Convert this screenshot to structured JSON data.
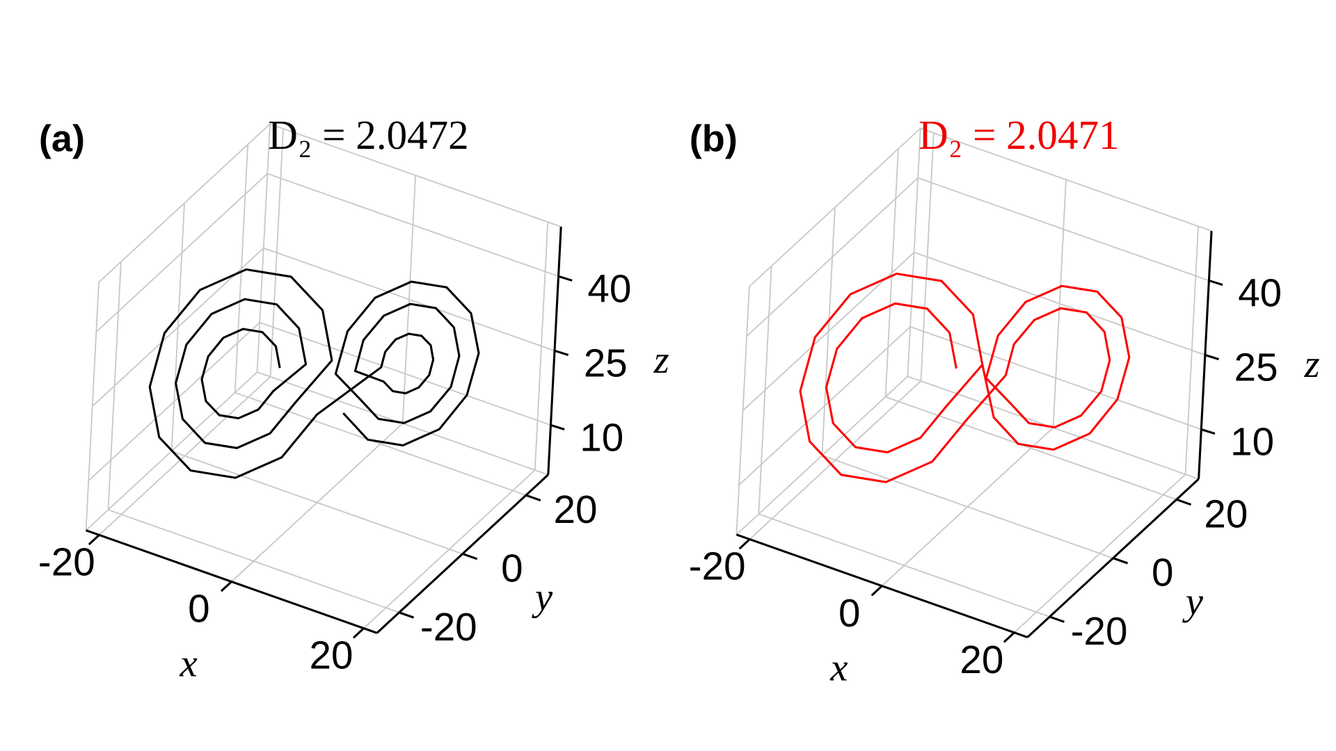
{
  "chart_data": [
    {
      "type": "line3d",
      "panel_label": "(a)",
      "title": "D₂ = 2.0472",
      "title_color": "#000000",
      "xlabel": "x",
      "ylabel": "y",
      "zlabel": "z",
      "xlim": [
        -22,
        22
      ],
      "ylim": [
        -27,
        27
      ],
      "zlim": [
        0,
        50
      ],
      "xticks": [
        -20,
        0,
        20
      ],
      "yticks": [
        -20,
        0,
        20
      ],
      "zticks": [
        10,
        25,
        40
      ],
      "grid": true,
      "series": [
        {
          "color": "#000000",
          "x": [
            -4.9,
            -5.4,
            -6.7,
            -8.5,
            -10.3,
            -11.6,
            -12.1,
            -11.6,
            -10.3,
            -8.5,
            -6.7,
            -5.4,
            -2.5,
            -3.3,
            -5.5,
            -8.5,
            -11.5,
            -13.7,
            -14.5,
            -13.7,
            -11.5,
            -8.5,
            -5.5,
            -3.3,
            -0.1,
            -1.2,
            -4.3,
            -8.5,
            -12.7,
            -15.8,
            -16.9,
            -15.8,
            -12.7,
            -8.5,
            -4.3,
            -1.2,
            6.1,
            6.4,
            7.3,
            8.5,
            9.7,
            10.6,
            10.9,
            10.6,
            9.7,
            8.5,
            7.3,
            6.4,
            3.7,
            4.3,
            6.1,
            8.5,
            10.9,
            12.7,
            13.3,
            12.7,
            10.9,
            8.5,
            6.1,
            4.3,
            1.9,
            2.8,
            5.2,
            8.5,
            11.8,
            14.2,
            15.1,
            14.2,
            11.8,
            8.5,
            5.2,
            2.8
          ],
          "y": [
            -3.7,
            -4.3,
            -6.1,
            -8.5,
            -10.9,
            -12.7,
            -13.3,
            -12.7,
            -10.9,
            -8.5,
            -6.1,
            -4.3,
            -0.5,
            -1.6,
            -4.5,
            -8.5,
            -12.5,
            -15.4,
            -16.5,
            -15.4,
            -12.5,
            -8.5,
            -4.5,
            -1.6,
            2.7,
            1.2,
            -2.9,
            -8.5,
            -14.1,
            -18.2,
            -19.7,
            -18.2,
            -14.1,
            -8.5,
            -2.9,
            1.2,
            5.3,
            5.7,
            6.9,
            8.5,
            10.1,
            11.3,
            11.7,
            11.3,
            10.1,
            8.5,
            6.9,
            5.7,
            2.1,
            3,
            5.3,
            8.5,
            11.7,
            14,
            14.9,
            14,
            11.7,
            8.5,
            5.3,
            3,
            -0.3,
            0.9,
            4.1,
            8.5,
            12.9,
            16.1,
            17.3,
            16.1,
            12.9,
            8.5,
            4.1,
            0.9
          ],
          "z": [
            27,
            31.5,
            34.8,
            36,
            34.8,
            31.5,
            27,
            22.5,
            19.2,
            18,
            19.2,
            22.5,
            27,
            34.5,
            40,
            42,
            40,
            34.5,
            27,
            19.5,
            14,
            12,
            14,
            19.5,
            27,
            37.5,
            45.2,
            48,
            45.2,
            37.5,
            27,
            16.5,
            8.8,
            6,
            8.8,
            16.5,
            27,
            30,
            32.2,
            33,
            32.2,
            30,
            27,
            24,
            21.8,
            21,
            21.8,
            24,
            27,
            33,
            37.4,
            39,
            37.4,
            33,
            27,
            21,
            16.6,
            15,
            16.6,
            21,
            27,
            35.3,
            41.3,
            43.5,
            41.3,
            35.3,
            27,
            18.8,
            12.7,
            10.5,
            12.7,
            18.8
          ]
        }
      ]
    },
    {
      "type": "line3d",
      "panel_label": "(b)",
      "title": "D₂ = 2.0471",
      "title_color": "#ee0000",
      "xlabel": "x",
      "ylabel": "y",
      "zlabel": "z",
      "xlim": [
        -22,
        22
      ],
      "ylim": [
        -27,
        27
      ],
      "zlim": [
        0,
        50
      ],
      "xticks": [
        -20,
        0,
        20
      ],
      "yticks": [
        -20,
        0,
        20
      ],
      "zticks": [
        10,
        25,
        40
      ],
      "grid": true,
      "series": [
        {
          "color": "#ff0000",
          "x": [
            -2.5,
            -3.3,
            -5.5,
            -8.5,
            -11.5,
            -13.7,
            -14.5,
            -13.7,
            -11.5,
            -8.5,
            -5.5,
            -3.3,
            -0.1,
            -1.2,
            -4.3,
            -8.5,
            -12.7,
            -15.8,
            -16.9,
            -15.8,
            -12.7,
            -8.5,
            -4.3,
            -1.2,
            3.7,
            4.3,
            6.1,
            8.5,
            10.9,
            12.7,
            13.3,
            12.7,
            10.9,
            8.5,
            6.1,
            4.3,
            1.9,
            2.8,
            5.2,
            8.5,
            11.8,
            14.2,
            15.1,
            14.2,
            11.8,
            8.5,
            5.2,
            2.8,
            -0.1,
            -1.2,
            -4.3,
            -8.5,
            -12.7,
            -15.8,
            -16.9,
            -15.8,
            -12.7,
            -8.5,
            -4.3,
            -1.2
          ],
          "y": [
            -0.5,
            -1.6,
            -4.5,
            -8.5,
            -12.5,
            -15.4,
            -16.5,
            -15.4,
            -12.5,
            -8.5,
            -4.5,
            -1.6,
            2.7,
            1.2,
            -2.9,
            -8.5,
            -14.1,
            -18.2,
            -19.7,
            -18.2,
            -14.1,
            -8.5,
            -2.9,
            1.2,
            2.1,
            3,
            5.3,
            8.5,
            11.7,
            14,
            14.9,
            14,
            11.7,
            8.5,
            5.3,
            3,
            -0.3,
            0.9,
            4.1,
            8.5,
            12.9,
            16.1,
            17.3,
            16.1,
            12.9,
            8.5,
            4.1,
            0.9,
            2.7,
            1.2,
            -2.9,
            -8.5,
            -14.1,
            -18.2,
            -19.7,
            -18.2,
            -14.1,
            -8.5,
            -2.9,
            1.2
          ],
          "z": [
            27,
            34.5,
            40,
            42,
            40,
            34.5,
            27,
            19.5,
            14,
            12,
            14,
            19.5,
            27,
            37.5,
            45.2,
            48,
            45.2,
            37.5,
            27,
            16.5,
            8.8,
            6,
            8.8,
            16.5,
            27,
            33,
            37.4,
            39,
            37.4,
            33,
            27,
            21,
            16.6,
            15,
            16.6,
            21,
            27,
            35.3,
            41.3,
            43.5,
            41.3,
            35.3,
            27,
            18.8,
            12.7,
            10.5,
            12.7,
            18.8,
            27,
            37.5,
            45.2,
            48,
            45.2,
            37.5,
            27,
            16.5,
            8.8,
            6,
            8.8,
            16.5
          ]
        }
      ]
    }
  ]
}
